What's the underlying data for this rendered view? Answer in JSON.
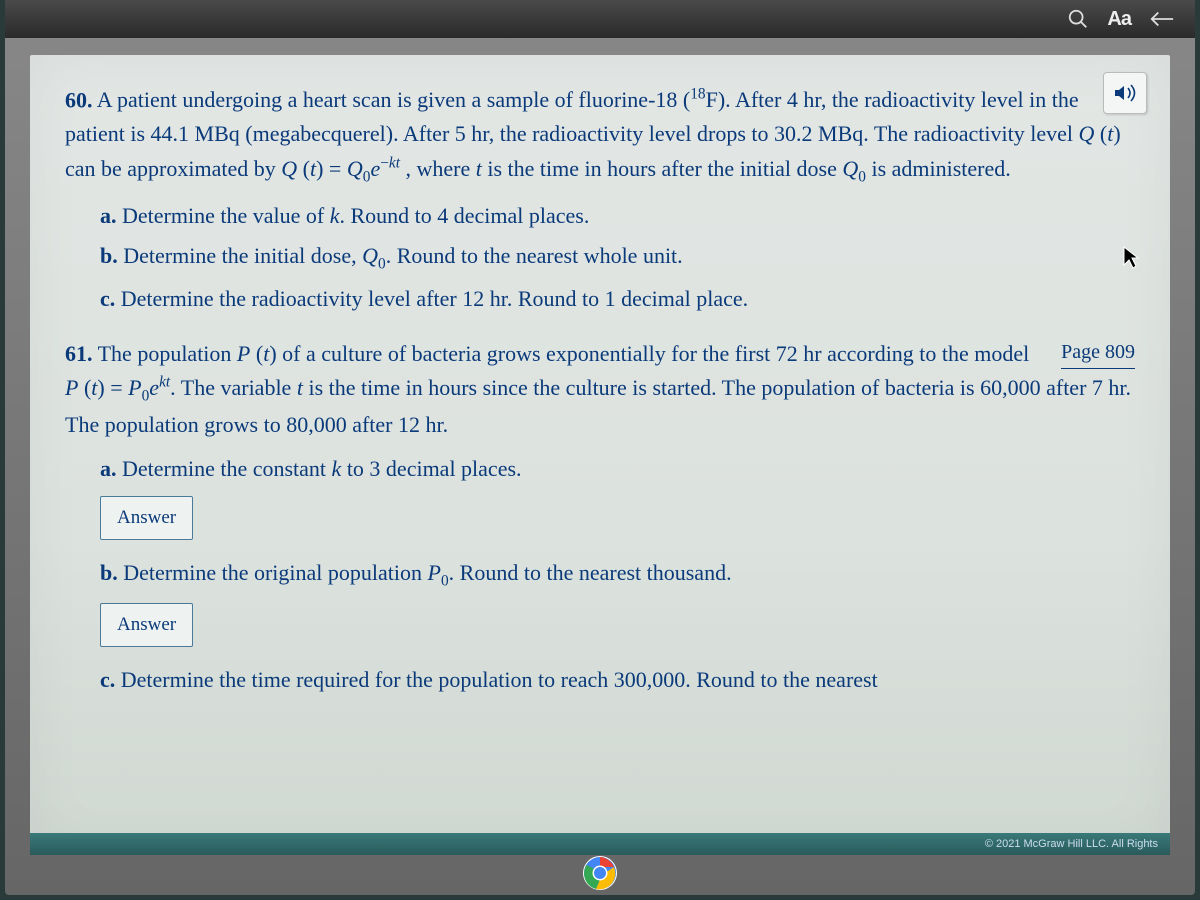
{
  "toolbar": {
    "font_label": "Aa"
  },
  "tts": {
    "name": "read-aloud-button"
  },
  "page_ref": "Page 809",
  "problems": [
    {
      "number": "60.",
      "body_html": "A patient undergoing a heart scan is given a sample of fluorine-18 (<sup>18</sup>F). After 4 hr, the radioactivity level in the patient is 44.1 MBq (megabecquerel). After 5 hr, the radioactivity level drops to 30.2 MBq. The radioactivity level <span class='ital'>Q</span> (<span class='ital'>t</span>) can be approximated by <span class='ital'>Q</span> (<span class='ital'>t</span>) = <span class='ital'>Q</span><sub>0</sub><span class='ital'>e</span><sup>&minus;<span class='ital'>kt</span></sup> , where <span class='ital'>t</span> is the time in hours after the initial dose <span class='ital'>Q</span><sub>0</sub> is administered.",
      "subs": [
        {
          "label": "a.",
          "text_html": "Determine the value of <span class='ital'>k</span>. Round to 4 decimal places."
        },
        {
          "label": "b.",
          "text_html": "Determine the initial dose, <span class='ital'>Q</span><sub>0</sub>. Round to the nearest whole unit."
        },
        {
          "label": "c.",
          "text_html": "Determine the radioactivity level after 12 hr. Round to 1 decimal place."
        }
      ]
    },
    {
      "number": "61.",
      "body_html": "The population <span class='ital'>P</span> (<span class='ital'>t</span>) of a culture of bacteria grows exponentially for the first 72 hr according to the model <span class='ital'>P</span> (<span class='ital'>t</span>) = <span class='ital'>P</span><sub>0</sub><span class='ital'>e</span><sup><span class='ital'>kt</span></sup>. The variable <span class='ital'>t</span> is the time in hours since the culture is started. The population of bacteria is 60,000 after 7 hr. The population grows to 80,000 after 12 hr.",
      "subs": [
        {
          "label": "a.",
          "text_html": "Determine the constant <span class='ital'>k</span> to 3 decimal places.",
          "answer": "Answer"
        },
        {
          "label": "b.",
          "text_html": "Determine the original population <span class='ital'>P</span><sub>0</sub>. Round to the nearest thousand.",
          "answer": "Answer"
        },
        {
          "label": "c.",
          "text_html": "Determine the time required for the population to reach 300,000. Round to the nearest"
        }
      ]
    }
  ],
  "footer": {
    "copyright": "© 2021 McGraw Hill LLC. All Rights"
  },
  "colors": {
    "text": "#0a3a7a",
    "page_bg_top": "#e2e6e4",
    "page_bg_bottom": "#d0d8d2",
    "toolbar_bg": "#2a2a2a",
    "footer_bg": "#2a5a5a"
  }
}
